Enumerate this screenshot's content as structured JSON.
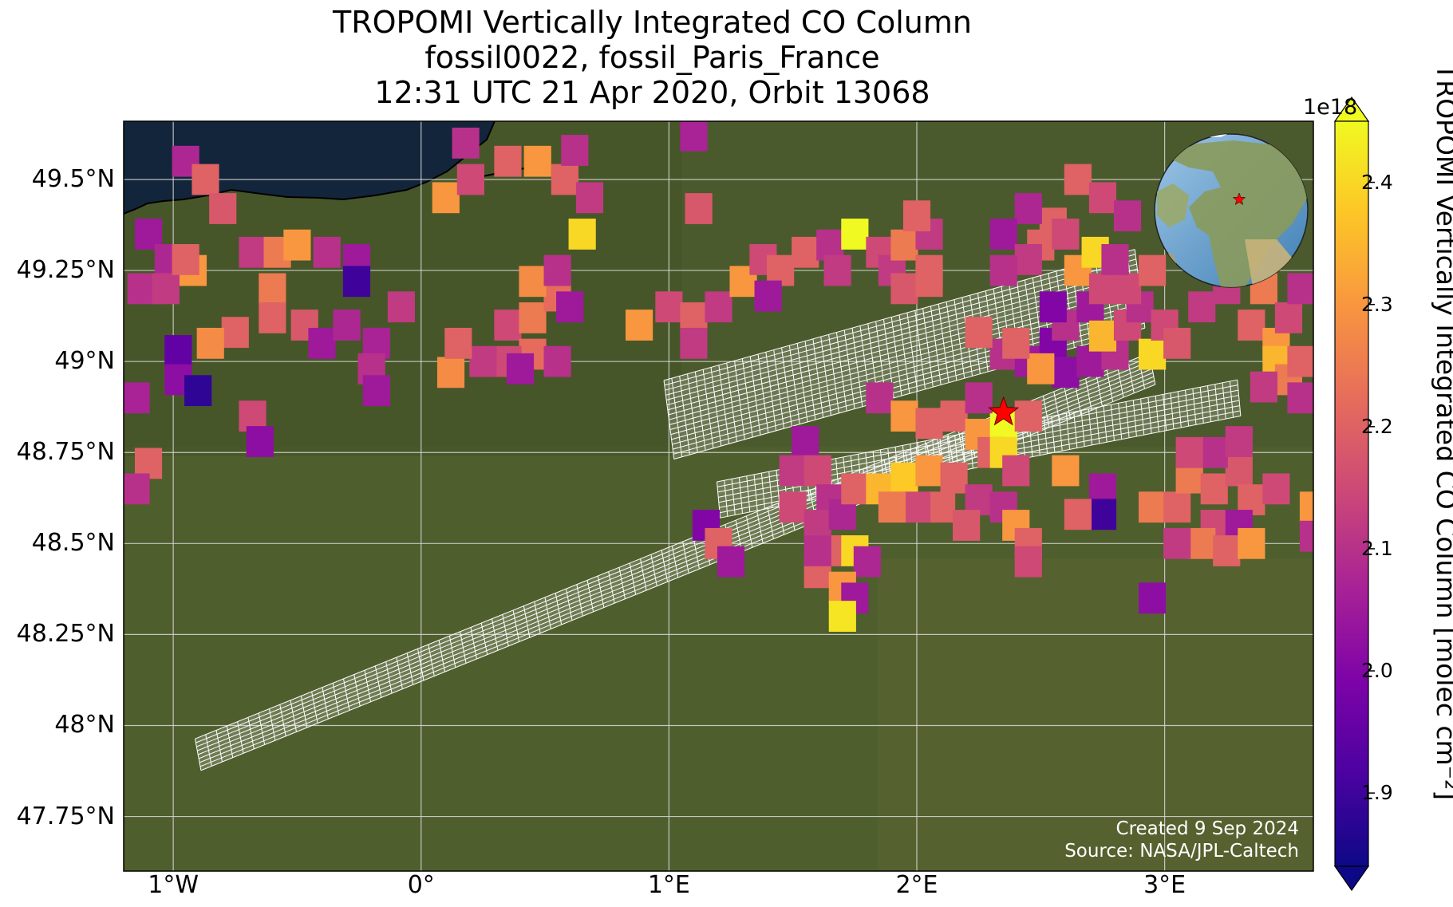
{
  "title": {
    "line1": "TROPOMI Vertically Integrated CO Column",
    "line2": "fossil0022, fossil_Paris_France",
    "line3": "12:31 UTC 21 Apr 2020, Orbit 13068"
  },
  "axes": {
    "lon_range": [
      -1.2,
      3.6
    ],
    "lat_range": [
      47.6,
      49.66
    ],
    "lat_ticks": [
      {
        "value": 49.5,
        "label": "49.5°N"
      },
      {
        "value": 49.25,
        "label": "49.25°N"
      },
      {
        "value": 49.0,
        "label": "49°N"
      },
      {
        "value": 48.75,
        "label": "48.75°N"
      },
      {
        "value": 48.5,
        "label": "48.5°N"
      },
      {
        "value": 48.25,
        "label": "48.25°N"
      },
      {
        "value": 48.0,
        "label": "48°N"
      },
      {
        "value": 47.75,
        "label": "47.75°N"
      }
    ],
    "lon_ticks": [
      {
        "value": -1,
        "label": "1°W"
      },
      {
        "value": 0,
        "label": "0°"
      },
      {
        "value": 1,
        "label": "1°E"
      },
      {
        "value": 2,
        "label": "2°E"
      },
      {
        "value": 3,
        "label": "3°E"
      }
    ],
    "grid": true
  },
  "colorbar": {
    "label": "TROPOMI Vertically Integrated CO Column [molec cm⁻²]",
    "exponent": "1e18",
    "min": 1.84,
    "max": 2.45,
    "colormap": "plasma",
    "ticks": [
      {
        "value": 1.9,
        "label": "1.9"
      },
      {
        "value": 2.0,
        "label": "2.0"
      },
      {
        "value": 2.1,
        "label": "2.1"
      },
      {
        "value": 2.2,
        "label": "2.2"
      },
      {
        "value": 2.3,
        "label": "2.3"
      },
      {
        "value": 2.4,
        "label": "2.4"
      }
    ]
  },
  "target": {
    "name": "fossil_Paris_France",
    "lon": 2.35,
    "lat": 48.86,
    "marker_color": "#ff0000"
  },
  "credit": {
    "line1": "Created 9 Sep 2024",
    "line2": "Source: NASA/JPL-Caltech"
  },
  "colors": {
    "sea": "#12253a",
    "land": "#4b5a2c",
    "grid": "#d8d8d8",
    "footprint": "#ffffff"
  },
  "cell_size_deg": {
    "lon": 0.11,
    "lat": 0.085
  },
  "soundings": [
    [
      -0.95,
      49.55,
      2.08
    ],
    [
      -0.87,
      49.5,
      2.2
    ],
    [
      -0.8,
      49.42,
      2.18
    ],
    [
      -1.1,
      49.35,
      2.05
    ],
    [
      -1.02,
      49.28,
      2.08
    ],
    [
      -0.92,
      49.25,
      2.3
    ],
    [
      -1.13,
      49.2,
      2.1
    ],
    [
      -1.03,
      49.2,
      2.12
    ],
    [
      -0.95,
      49.28,
      2.2
    ],
    [
      -0.68,
      49.3,
      2.12
    ],
    [
      -0.58,
      49.3,
      2.25
    ],
    [
      -0.5,
      49.32,
      2.3
    ],
    [
      -0.38,
      49.3,
      2.1
    ],
    [
      -0.26,
      49.28,
      2.05
    ],
    [
      -0.26,
      49.22,
      1.9
    ],
    [
      -0.6,
      49.2,
      2.25
    ],
    [
      -0.6,
      49.12,
      2.2
    ],
    [
      -0.47,
      49.1,
      2.18
    ],
    [
      -0.4,
      49.05,
      2.05
    ],
    [
      -0.3,
      49.1,
      2.08
    ],
    [
      -0.08,
      49.15,
      2.12
    ],
    [
      -0.18,
      49.05,
      2.07
    ],
    [
      -0.2,
      48.98,
      2.1
    ],
    [
      -0.18,
      48.92,
      2.05
    ],
    [
      -0.75,
      49.08,
      2.2
    ],
    [
      -0.85,
      49.05,
      2.28
    ],
    [
      -0.98,
      49.03,
      1.95
    ],
    [
      -0.98,
      48.95,
      2.02
    ],
    [
      -0.9,
      48.92,
      1.88
    ],
    [
      -1.15,
      48.9,
      2.07
    ],
    [
      -0.68,
      48.85,
      2.15
    ],
    [
      -0.65,
      48.78,
      2.02
    ],
    [
      -1.1,
      48.72,
      2.2
    ],
    [
      -1.15,
      48.65,
      2.1
    ],
    [
      0.1,
      49.45,
      2.3
    ],
    [
      0.2,
      49.5,
      2.15
    ],
    [
      0.35,
      49.55,
      2.2
    ],
    [
      0.47,
      49.55,
      2.3
    ],
    [
      0.58,
      49.5,
      2.2
    ],
    [
      0.68,
      49.45,
      2.12
    ],
    [
      0.18,
      49.6,
      2.1
    ],
    [
      0.62,
      49.58,
      2.1
    ],
    [
      0.65,
      49.35,
      2.4
    ],
    [
      0.35,
      49.1,
      2.15
    ],
    [
      0.45,
      49.12,
      2.25
    ],
    [
      0.55,
      49.18,
      2.22
    ],
    [
      0.45,
      49.22,
      2.28
    ],
    [
      0.55,
      49.25,
      2.1
    ],
    [
      0.6,
      49.15,
      2.05
    ],
    [
      0.45,
      49.02,
      2.22
    ],
    [
      0.55,
      49.0,
      2.1
    ],
    [
      0.35,
      49.0,
      2.15
    ],
    [
      0.4,
      48.98,
      2.05
    ],
    [
      0.25,
      49.0,
      2.12
    ],
    [
      0.12,
      48.97,
      2.28
    ],
    [
      0.15,
      49.05,
      2.2
    ],
    [
      1.1,
      49.62,
      2.07
    ],
    [
      1.12,
      49.42,
      2.18
    ],
    [
      1.0,
      49.15,
      2.15
    ],
    [
      1.1,
      49.12,
      2.2
    ],
    [
      1.2,
      49.15,
      2.12
    ],
    [
      1.1,
      49.05,
      2.12
    ],
    [
      0.88,
      49.1,
      2.3
    ],
    [
      1.3,
      49.22,
      2.3
    ],
    [
      1.38,
      49.28,
      2.15
    ],
    [
      1.45,
      49.25,
      2.2
    ],
    [
      1.55,
      49.3,
      2.2
    ],
    [
      1.65,
      49.32,
      2.1
    ],
    [
      1.68,
      49.25,
      2.12
    ],
    [
      1.75,
      49.35,
      2.45
    ],
    [
      1.85,
      49.3,
      2.15
    ],
    [
      1.9,
      49.25,
      2.12
    ],
    [
      1.95,
      49.32,
      2.25
    ],
    [
      2.05,
      49.35,
      2.12
    ],
    [
      2.05,
      49.25,
      2.2
    ],
    [
      2.0,
      49.4,
      2.2
    ],
    [
      1.4,
      49.18,
      2.05
    ],
    [
      1.95,
      49.2,
      2.18
    ],
    [
      2.05,
      49.22,
      2.2
    ],
    [
      2.35,
      49.02,
      2.1
    ],
    [
      2.45,
      49.0,
      2.05
    ],
    [
      2.55,
      49.05,
      2.0
    ],
    [
      2.6,
      48.97,
      2.02
    ],
    [
      2.7,
      49.0,
      2.05
    ],
    [
      2.8,
      49.02,
      2.1
    ],
    [
      2.5,
      48.98,
      2.3
    ],
    [
      2.4,
      49.05,
      2.2
    ],
    [
      2.25,
      49.08,
      2.2
    ],
    [
      2.6,
      49.1,
      2.1
    ],
    [
      2.7,
      49.15,
      2.05
    ],
    [
      2.55,
      49.15,
      2.0
    ],
    [
      2.65,
      49.25,
      2.3
    ],
    [
      2.72,
      49.3,
      2.4
    ],
    [
      2.75,
      49.2,
      2.15
    ],
    [
      2.75,
      49.07,
      2.35
    ],
    [
      2.85,
      49.1,
      2.15
    ],
    [
      2.9,
      49.15,
      2.1
    ],
    [
      2.85,
      49.2,
      2.15
    ],
    [
      2.95,
      49.25,
      2.2
    ],
    [
      2.8,
      49.28,
      2.1
    ],
    [
      2.65,
      49.5,
      2.2
    ],
    [
      2.75,
      49.45,
      2.15
    ],
    [
      2.85,
      49.4,
      2.1
    ],
    [
      2.55,
      49.38,
      2.2
    ],
    [
      2.45,
      49.42,
      2.08
    ],
    [
      2.35,
      49.35,
      2.05
    ],
    [
      2.5,
      49.32,
      2.2
    ],
    [
      2.6,
      49.35,
      2.15
    ],
    [
      2.45,
      49.28,
      2.12
    ],
    [
      2.35,
      49.25,
      2.1
    ],
    [
      2.95,
      49.02,
      2.4
    ],
    [
      3.0,
      49.1,
      2.15
    ],
    [
      3.05,
      49.05,
      2.18
    ],
    [
      3.15,
      49.15,
      2.12
    ],
    [
      3.25,
      49.2,
      2.12
    ],
    [
      3.3,
      49.3,
      2.18
    ],
    [
      3.4,
      49.2,
      2.25
    ],
    [
      3.35,
      49.1,
      2.2
    ],
    [
      3.45,
      49.05,
      2.3
    ],
    [
      3.5,
      49.12,
      2.15
    ],
    [
      3.55,
      49.2,
      2.1
    ],
    [
      3.45,
      49.0,
      2.35
    ],
    [
      3.5,
      48.95,
      2.25
    ],
    [
      3.4,
      48.93,
      2.12
    ],
    [
      3.55,
      48.9,
      2.1
    ],
    [
      3.55,
      49.0,
      2.2
    ],
    [
      1.85,
      48.9,
      2.1
    ],
    [
      1.95,
      48.85,
      2.3
    ],
    [
      2.05,
      48.83,
      2.2
    ],
    [
      2.15,
      48.85,
      2.2
    ],
    [
      2.25,
      48.8,
      2.3
    ],
    [
      2.35,
      48.82,
      2.45
    ],
    [
      2.45,
      48.85,
      2.2
    ],
    [
      2.25,
      48.9,
      2.1
    ],
    [
      2.3,
      48.75,
      2.2
    ],
    [
      2.35,
      48.75,
      2.4
    ],
    [
      2.4,
      48.7,
      2.15
    ],
    [
      1.55,
      48.78,
      2.05
    ],
    [
      1.5,
      48.7,
      2.12
    ],
    [
      1.6,
      48.7,
      2.15
    ],
    [
      1.65,
      48.62,
      2.1
    ],
    [
      1.5,
      48.6,
      2.15
    ],
    [
      1.6,
      48.55,
      2.12
    ],
    [
      1.7,
      48.58,
      2.08
    ],
    [
      1.75,
      48.65,
      2.2
    ],
    [
      1.85,
      48.65,
      2.35
    ],
    [
      1.95,
      48.68,
      2.38
    ],
    [
      2.05,
      48.7,
      2.3
    ],
    [
      2.15,
      48.68,
      2.2
    ],
    [
      2.25,
      48.62,
      2.12
    ],
    [
      2.35,
      48.6,
      2.1
    ],
    [
      2.1,
      48.6,
      2.2
    ],
    [
      2.0,
      48.6,
      2.15
    ],
    [
      1.9,
      48.6,
      2.25
    ],
    [
      2.2,
      48.55,
      2.18
    ],
    [
      2.4,
      48.55,
      2.3
    ],
    [
      2.45,
      48.5,
      2.2
    ],
    [
      2.45,
      48.45,
      2.15
    ],
    [
      1.65,
      48.48,
      2.2
    ],
    [
      1.75,
      48.48,
      2.4
    ],
    [
      1.8,
      48.45,
      2.08
    ],
    [
      1.6,
      48.42,
      2.2
    ],
    [
      1.7,
      48.38,
      2.3
    ],
    [
      1.75,
      48.35,
      2.05
    ],
    [
      1.7,
      48.3,
      2.42
    ],
    [
      1.6,
      48.48,
      2.1
    ],
    [
      1.15,
      48.55,
      2.0
    ],
    [
      1.2,
      48.5,
      2.2
    ],
    [
      1.25,
      48.45,
      2.05
    ],
    [
      2.6,
      48.7,
      2.3
    ],
    [
      2.75,
      48.65,
      2.05
    ],
    [
      2.75,
      48.58,
      1.9
    ],
    [
      2.65,
      48.58,
      2.2
    ],
    [
      2.95,
      48.6,
      2.25
    ],
    [
      3.05,
      48.6,
      2.2
    ],
    [
      3.1,
      48.68,
      2.25
    ],
    [
      3.2,
      48.65,
      2.2
    ],
    [
      3.3,
      48.7,
      2.18
    ],
    [
      3.35,
      48.62,
      2.2
    ],
    [
      3.2,
      48.55,
      2.15
    ],
    [
      3.3,
      48.55,
      2.05
    ],
    [
      3.15,
      48.5,
      2.25
    ],
    [
      3.05,
      48.5,
      2.12
    ],
    [
      3.25,
      48.48,
      2.2
    ],
    [
      3.35,
      48.5,
      2.3
    ],
    [
      3.2,
      48.75,
      2.1
    ],
    [
      3.1,
      48.75,
      2.15
    ],
    [
      3.3,
      48.78,
      2.12
    ],
    [
      3.45,
      48.65,
      2.15
    ],
    [
      3.6,
      48.6,
      2.3
    ],
    [
      3.6,
      48.52,
      2.1
    ],
    [
      2.95,
      48.35,
      2.02
    ]
  ]
}
